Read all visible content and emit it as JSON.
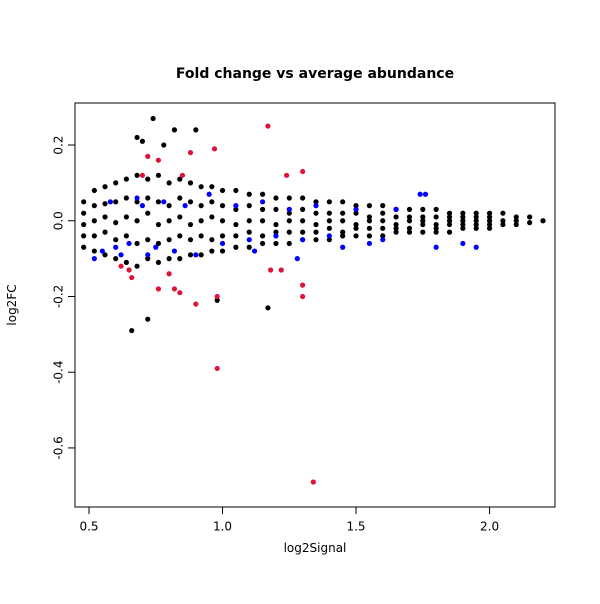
{
  "chart_data": {
    "type": "scatter",
    "title": "Fold change vs average abundance",
    "x_label": "log2Signal",
    "y_label": "log2FC",
    "xlim": [
      0.4476,
      2.245
    ],
    "ylim": [
      -0.756,
      0.311
    ],
    "xticks": [
      {
        "value": 0.5,
        "label": "0.5"
      },
      {
        "value": 1,
        "label": "1.0"
      },
      {
        "value": 1.5,
        "label": "1.5"
      },
      {
        "value": 2,
        "label": "2.0"
      }
    ],
    "yticks": [
      {
        "value": -0.6,
        "label": "-0.6"
      },
      {
        "value": -0.4,
        "label": "-0.4"
      },
      {
        "value": -0.2,
        "label": "-0.2"
      },
      {
        "value": 0,
        "label": "0.0"
      },
      {
        "value": 0.2,
        "label": "0.2"
      }
    ],
    "series": [
      {
        "color": "#000000",
        "x": [
          0.48,
          0.48,
          0.48,
          0.48,
          0.48,
          0.52,
          0.52,
          0.52,
          0.52,
          0.52,
          0.56,
          0.56,
          0.56,
          0.56,
          0.56,
          0.6,
          0.6,
          0.6,
          0.6,
          0.6,
          0.64,
          0.64,
          0.64,
          0.64,
          0.64,
          0.68,
          0.68,
          0.68,
          0.68,
          0.68,
          0.72,
          0.72,
          0.72,
          0.72,
          0.72,
          0.76,
          0.76,
          0.76,
          0.76,
          0.76,
          0.8,
          0.8,
          0.8,
          0.8,
          0.8,
          0.84,
          0.84,
          0.84,
          0.84,
          0.84,
          0.88,
          0.88,
          0.88,
          0.88,
          0.88,
          0.92,
          0.92,
          0.92,
          0.92,
          0.92,
          0.96,
          0.96,
          0.96,
          0.96,
          0.96,
          1.0,
          1.0,
          1.0,
          1.0,
          1.0,
          1.05,
          1.05,
          1.05,
          1.05,
          1.05,
          1.1,
          1.1,
          1.1,
          1.1,
          1.1,
          1.15,
          1.15,
          1.15,
          1.15,
          1.15,
          1.2,
          1.2,
          1.2,
          1.2,
          1.2,
          1.25,
          1.25,
          1.25,
          1.25,
          1.25,
          1.3,
          1.3,
          1.3,
          1.3,
          1.3,
          1.35,
          1.35,
          1.35,
          1.35,
          1.35,
          1.4,
          1.4,
          1.4,
          1.4,
          1.4,
          1.45,
          1.45,
          1.45,
          1.45,
          1.45,
          1.5,
          1.5,
          1.5,
          1.5,
          1.5,
          1.55,
          1.55,
          1.55,
          1.55,
          1.55,
          1.6,
          1.6,
          1.6,
          1.6,
          1.6,
          1.65,
          1.65,
          1.65,
          1.65,
          1.65,
          1.7,
          1.7,
          1.7,
          1.7,
          1.7,
          1.75,
          1.75,
          1.75,
          1.75,
          1.75,
          1.8,
          1.8,
          1.8,
          1.8,
          1.8,
          1.85,
          1.85,
          1.85,
          1.85,
          1.85,
          1.9,
          1.9,
          1.9,
          1.9,
          1.9,
          1.95,
          1.95,
          1.95,
          1.95,
          1.95,
          2.0,
          2.0,
          2.0,
          2.0,
          2.0,
          2.05,
          2.05,
          2.05,
          2.1,
          2.1,
          2.1,
          2.15,
          2.15,
          2.2,
          0.74,
          0.82,
          0.68,
          0.66,
          0.72,
          1.17,
          0.98,
          0.9,
          0.7,
          0.78
        ],
        "values": [
          0.05,
          0.02,
          -0.01,
          -0.04,
          -0.07,
          0.08,
          0.04,
          0.0,
          -0.04,
          -0.08,
          0.09,
          0.045,
          0.01,
          -0.03,
          -0.09,
          0.1,
          0.05,
          -0.005,
          -0.05,
          -0.1,
          0.11,
          0.06,
          0.01,
          -0.04,
          -0.11,
          0.12,
          0.05,
          0.0,
          -0.06,
          -0.12,
          0.11,
          0.06,
          0.02,
          -0.05,
          -0.1,
          0.12,
          0.05,
          -0.01,
          -0.06,
          -0.11,
          0.1,
          0.04,
          0.0,
          -0.05,
          -0.1,
          0.11,
          0.06,
          0.01,
          -0.04,
          -0.1,
          0.1,
          0.05,
          -0.01,
          -0.05,
          -0.09,
          0.09,
          0.04,
          0.0,
          -0.04,
          -0.09,
          0.09,
          0.05,
          0.01,
          -0.05,
          -0.08,
          0.08,
          0.04,
          0.0,
          -0.04,
          -0.08,
          0.08,
          0.03,
          -0.01,
          -0.04,
          -0.07,
          0.07,
          0.04,
          0.0,
          -0.03,
          -0.07,
          0.07,
          0.03,
          0.0,
          -0.04,
          -0.06,
          0.06,
          0.03,
          -0.01,
          -0.03,
          -0.06,
          0.06,
          0.02,
          0.0,
          -0.03,
          -0.06,
          0.06,
          0.03,
          0.0,
          -0.03,
          -0.05,
          0.05,
          0.02,
          -0.01,
          -0.03,
          -0.05,
          0.05,
          0.02,
          0.0,
          -0.02,
          -0.05,
          0.05,
          0.02,
          0.0,
          -0.03,
          -0.04,
          0.04,
          0.02,
          -0.01,
          -0.02,
          -0.04,
          0.04,
          0.01,
          0.0,
          -0.02,
          -0.04,
          0.04,
          0.02,
          0.0,
          -0.02,
          -0.04,
          0.03,
          0.01,
          -0.01,
          -0.02,
          -0.03,
          0.03,
          0.01,
          0.0,
          -0.02,
          -0.03,
          0.03,
          0.01,
          0.0,
          -0.01,
          -0.03,
          0.03,
          0.01,
          -0.01,
          -0.02,
          -0.03,
          0.02,
          0.01,
          0.0,
          -0.01,
          -0.03,
          0.02,
          0.01,
          0.0,
          -0.01,
          -0.02,
          0.02,
          0.01,
          0.0,
          -0.01,
          -0.02,
          0.02,
          0.01,
          0.0,
          -0.01,
          -0.02,
          0.02,
          0.0,
          -0.01,
          0.01,
          0.0,
          -0.01,
          0.01,
          -0.005,
          0.0,
          0.27,
          0.24,
          0.22,
          -0.29,
          -0.26,
          -0.23,
          -0.21,
          0.24,
          0.21,
          0.2
        ]
      },
      {
        "color": "#0000ff",
        "x": [
          0.52,
          0.55,
          0.6,
          0.62,
          0.65,
          0.68,
          0.72,
          0.75,
          0.78,
          0.82,
          0.86,
          0.9,
          0.95,
          1.0,
          1.05,
          1.1,
          1.15,
          1.2,
          1.25,
          1.3,
          1.35,
          1.4,
          1.45,
          1.5,
          1.55,
          1.6,
          1.65,
          1.74,
          1.76,
          1.8,
          1.9,
          1.95,
          0.58,
          0.7,
          1.12,
          1.28
        ],
        "values": [
          -0.1,
          -0.08,
          -0.07,
          -0.09,
          -0.06,
          0.06,
          -0.09,
          -0.07,
          0.05,
          -0.08,
          0.04,
          -0.09,
          0.07,
          -0.06,
          0.04,
          -0.05,
          0.05,
          -0.04,
          0.03,
          -0.05,
          0.04,
          -0.04,
          -0.07,
          0.03,
          -0.06,
          -0.05,
          0.03,
          0.07,
          0.07,
          -0.07,
          -0.06,
          -0.07,
          0.05,
          0.04,
          -0.08,
          -0.1
        ]
      },
      {
        "color": "#dc143c",
        "x": [
          1.17,
          0.97,
          0.88,
          0.76,
          0.72,
          1.3,
          1.24,
          0.7,
          0.98,
          1.34,
          1.3,
          1.3,
          0.98,
          0.9,
          0.76,
          0.82,
          0.84,
          0.62,
          0.65,
          0.8,
          1.22,
          1.18,
          0.66,
          0.85
        ],
        "values": [
          0.25,
          0.19,
          0.18,
          0.16,
          0.17,
          0.13,
          0.12,
          0.12,
          -0.39,
          -0.69,
          -0.2,
          -0.17,
          -0.2,
          -0.22,
          -0.18,
          -0.18,
          -0.19,
          -0.12,
          -0.13,
          -0.14,
          -0.13,
          -0.13,
          -0.15,
          0.12
        ]
      }
    ]
  }
}
